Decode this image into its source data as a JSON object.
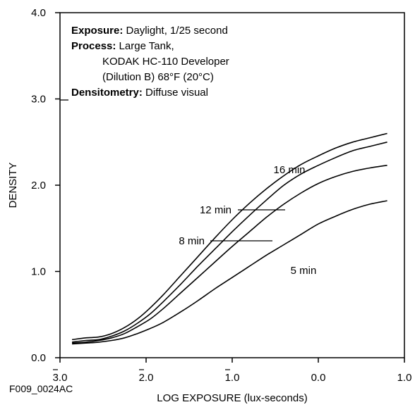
{
  "chart_data": {
    "type": "line",
    "xlabel": "LOG EXPOSURE (lux-seconds)",
    "ylabel": "DENSITY",
    "xlim": [
      -3.0,
      1.0
    ],
    "ylim": [
      0.0,
      4.0
    ],
    "x_ticks": [
      {
        "value": -3.0,
        "label": "3.0",
        "bar": true
      },
      {
        "value": -2.0,
        "label": "2.0",
        "bar": true
      },
      {
        "value": -1.0,
        "label": "1.0",
        "bar": true
      },
      {
        "value": 0.0,
        "label": "0.0",
        "bar": false
      },
      {
        "value": 1.0,
        "label": "1.0",
        "bar": false
      }
    ],
    "y_ticks": [
      {
        "value": 0.0,
        "label": "0.0"
      },
      {
        "value": 1.0,
        "label": "1.0"
      },
      {
        "value": 2.0,
        "label": "2.0"
      },
      {
        "value": 3.0,
        "label": "3.0"
      },
      {
        "value": 4.0,
        "label": "4.0"
      }
    ],
    "grid": false,
    "series": [
      {
        "name": "16 min",
        "x": [
          -2.86,
          -2.7,
          -2.55,
          -2.4,
          -2.25,
          -2.1,
          -1.95,
          -1.8,
          -1.6,
          -1.4,
          -1.2,
          -1.0,
          -0.8,
          -0.6,
          -0.4,
          -0.2,
          0.0,
          0.2,
          0.4,
          0.6,
          0.8
        ],
        "y": [
          0.21,
          0.23,
          0.24,
          0.28,
          0.35,
          0.45,
          0.58,
          0.73,
          0.95,
          1.17,
          1.39,
          1.6,
          1.79,
          1.96,
          2.11,
          2.24,
          2.34,
          2.43,
          2.5,
          2.55,
          2.6
        ]
      },
      {
        "name": "12 min",
        "x": [
          -2.86,
          -2.7,
          -2.55,
          -2.4,
          -2.25,
          -2.1,
          -1.95,
          -1.8,
          -1.6,
          -1.4,
          -1.2,
          -1.0,
          -0.8,
          -0.6,
          -0.4,
          -0.2,
          0.0,
          0.2,
          0.4,
          0.6,
          0.8
        ],
        "y": [
          0.18,
          0.2,
          0.21,
          0.25,
          0.31,
          0.4,
          0.51,
          0.65,
          0.85,
          1.06,
          1.26,
          1.46,
          1.65,
          1.83,
          2.0,
          2.13,
          2.23,
          2.32,
          2.4,
          2.45,
          2.5
        ]
      },
      {
        "name": "8 min",
        "x": [
          -2.86,
          -2.7,
          -2.55,
          -2.4,
          -2.25,
          -2.1,
          -1.95,
          -1.8,
          -1.6,
          -1.4,
          -1.2,
          -1.0,
          -0.8,
          -0.6,
          -0.4,
          -0.2,
          0.0,
          0.2,
          0.4,
          0.6,
          0.8
        ],
        "y": [
          0.17,
          0.18,
          0.2,
          0.23,
          0.28,
          0.36,
          0.45,
          0.57,
          0.75,
          0.93,
          1.11,
          1.29,
          1.46,
          1.63,
          1.78,
          1.91,
          2.02,
          2.1,
          2.16,
          2.2,
          2.23
        ]
      },
      {
        "name": "5 min",
        "x": [
          -2.86,
          -2.7,
          -2.55,
          -2.4,
          -2.25,
          -2.1,
          -1.95,
          -1.8,
          -1.6,
          -1.4,
          -1.2,
          -1.0,
          -0.8,
          -0.6,
          -0.4,
          -0.2,
          0.0,
          0.2,
          0.4,
          0.6,
          0.8
        ],
        "y": [
          0.16,
          0.17,
          0.18,
          0.2,
          0.23,
          0.28,
          0.34,
          0.41,
          0.53,
          0.66,
          0.8,
          0.93,
          1.06,
          1.19,
          1.31,
          1.43,
          1.55,
          1.64,
          1.72,
          1.78,
          1.82
        ]
      }
    ],
    "curve_labels": [
      {
        "series": "16 min",
        "text": "16 min",
        "leader": false
      },
      {
        "series": "12 min",
        "text": "12 min",
        "leader": true
      },
      {
        "series": "8 min",
        "text": "8 min",
        "leader": true
      },
      {
        "series": "5 min",
        "text": "5 min",
        "leader": false
      }
    ],
    "annotation": {
      "lines": [
        {
          "bold": "Exposure:",
          "text": " Daylight, 1/25 second",
          "indent": false
        },
        {
          "bold": "Process:",
          "text": " Large Tank,",
          "indent": false
        },
        {
          "bold": "",
          "text": "KODAK HC-110 Developer",
          "indent": true
        },
        {
          "bold": "",
          "text": "(Dilution B) 68°F (20°C)",
          "indent": true
        },
        {
          "bold": "Densitometry:",
          "text": " Diffuse visual",
          "indent": false
        }
      ]
    },
    "figure_id": "F009_0024AC"
  }
}
